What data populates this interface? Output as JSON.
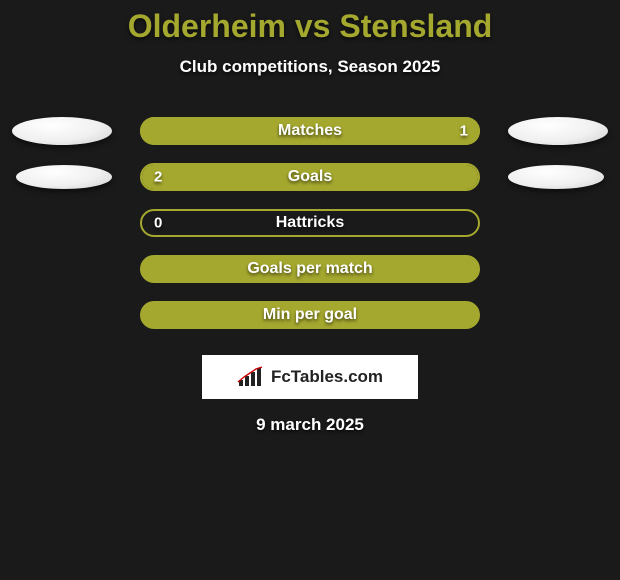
{
  "title": "Olderheim vs Stensland",
  "subtitle": "Club competitions, Season 2025",
  "date": "9 march 2025",
  "brand": "FcTables.com",
  "colors": {
    "accent": "#a5a82e",
    "accent_light": "#c4c65c",
    "bg": "#1a1a1a",
    "text": "#ffffff"
  },
  "rows": [
    {
      "label": "Matches",
      "left_value": "",
      "right_value": "1",
      "show_ellipses": true,
      "left_fill_pct": 0,
      "right_fill_pct": 100,
      "left_fill_color": "#a5a82e",
      "right_fill_color": "#a5a82e",
      "bar_bg": "#a5a82e"
    },
    {
      "label": "Goals",
      "left_value": "2",
      "right_value": "",
      "show_ellipses": true,
      "ellipse_small": true,
      "left_fill_pct": 100,
      "right_fill_pct": 0,
      "left_fill_color": "#a5a82e",
      "right_fill_color": "#a5a82e",
      "bar_bg": "#1a1a1a",
      "bar_border": "#a5a82e"
    },
    {
      "label": "Hattricks",
      "left_value": "0",
      "right_value": "",
      "show_ellipses": false,
      "left_fill_pct": 0,
      "right_fill_pct": 0,
      "left_fill_color": "#a5a82e",
      "right_fill_color": "#a5a82e",
      "bar_bg": "#1a1a1a",
      "bar_border": "#a5a82e"
    },
    {
      "label": "Goals per match",
      "left_value": "",
      "right_value": "",
      "show_ellipses": false,
      "left_fill_pct": 100,
      "right_fill_pct": 0,
      "left_fill_color": "#a5a82e",
      "right_fill_color": "#a5a82e",
      "bar_bg": "#a5a82e",
      "bar_border": "#a5a82e"
    },
    {
      "label": "Min per goal",
      "left_value": "",
      "right_value": "",
      "show_ellipses": false,
      "left_fill_pct": 100,
      "right_fill_pct": 0,
      "left_fill_color": "#a5a82e",
      "right_fill_color": "#a5a82e",
      "bar_bg": "#a5a82e",
      "bar_border": "#a5a82e"
    }
  ]
}
